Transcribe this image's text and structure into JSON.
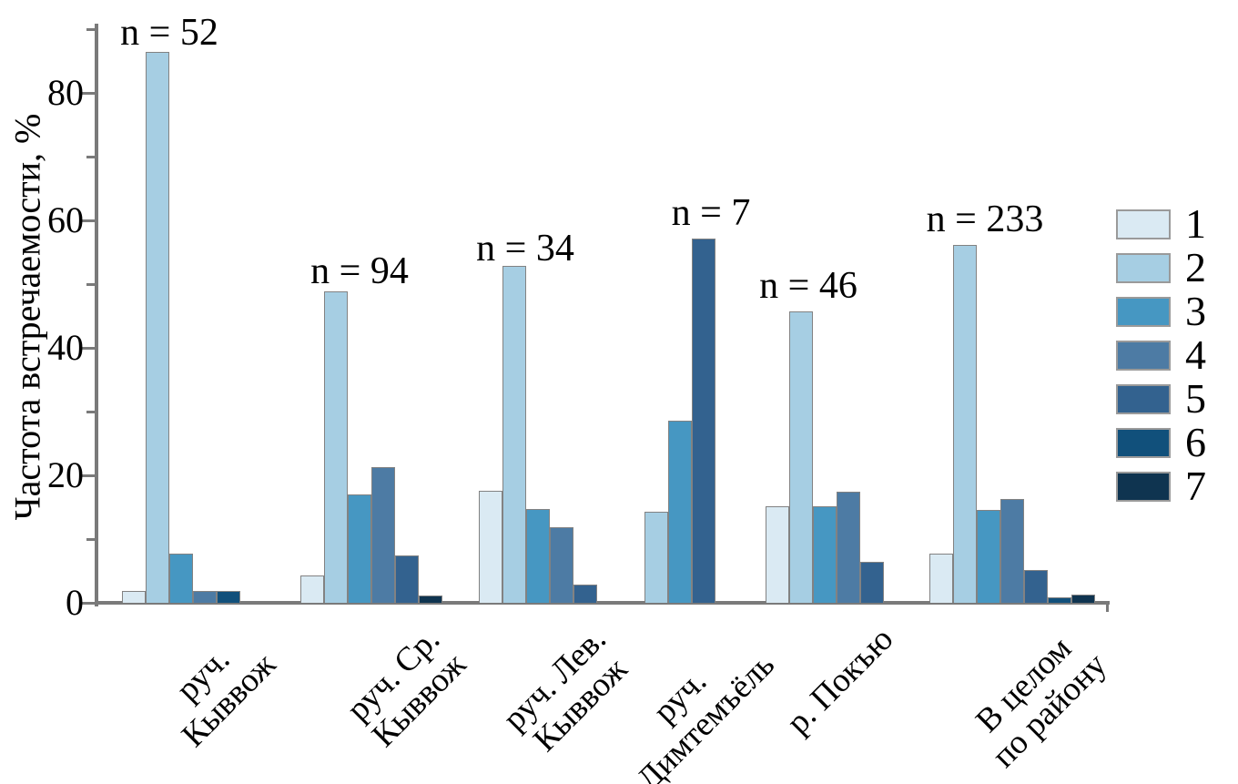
{
  "chart_data": {
    "type": "bar",
    "title": "",
    "xlabel": "",
    "ylabel": "Частота встречаемости, %",
    "ylim": [
      0,
      90
    ],
    "yticks_major": [
      0,
      20,
      40,
      60,
      80
    ],
    "yticks_minor": [
      10,
      30,
      50,
      70,
      90
    ],
    "grid": false,
    "legend_position": "right",
    "categories": [
      "руч.\nКыввож",
      "руч. Ср.\nКыввож",
      "руч. Лев.\nКыввож",
      "руч.\nДимтемъёль",
      "р. Покъю",
      "В целом\nпо району"
    ],
    "group_annotations": [
      "n = 52",
      "n = 94",
      "n = 34",
      "n = 7",
      "n = 46",
      "n = 233"
    ],
    "series": [
      {
        "name": "1",
        "color": "#daeaf3",
        "values": [
          1.9,
          4.3,
          17.6,
          0,
          15.2,
          7.7
        ]
      },
      {
        "name": "2",
        "color": "#a6cee3",
        "values": [
          86.5,
          48.9,
          52.9,
          14.3,
          45.7,
          56.2
        ]
      },
      {
        "name": "3",
        "color": "#4697c2",
        "values": [
          7.7,
          17.0,
          14.7,
          28.6,
          15.2,
          14.6
        ]
      },
      {
        "name": "4",
        "color": "#4d7ba4",
        "values": [
          1.9,
          21.3,
          11.8,
          0,
          17.4,
          16.3
        ]
      },
      {
        "name": "5",
        "color": "#33628f",
        "values": [
          0,
          7.4,
          2.9,
          57.1,
          6.5,
          5.2
        ]
      },
      {
        "name": "6",
        "color": "#11507b",
        "values": [
          1.9,
          0,
          0,
          0,
          0,
          0.9
        ]
      },
      {
        "name": "7",
        "color": "#0f3450",
        "values": [
          0,
          1.1,
          0,
          0,
          0,
          1.3
        ]
      }
    ],
    "axis_color": "#7a7a7a",
    "bar_border_color": "#828282"
  }
}
